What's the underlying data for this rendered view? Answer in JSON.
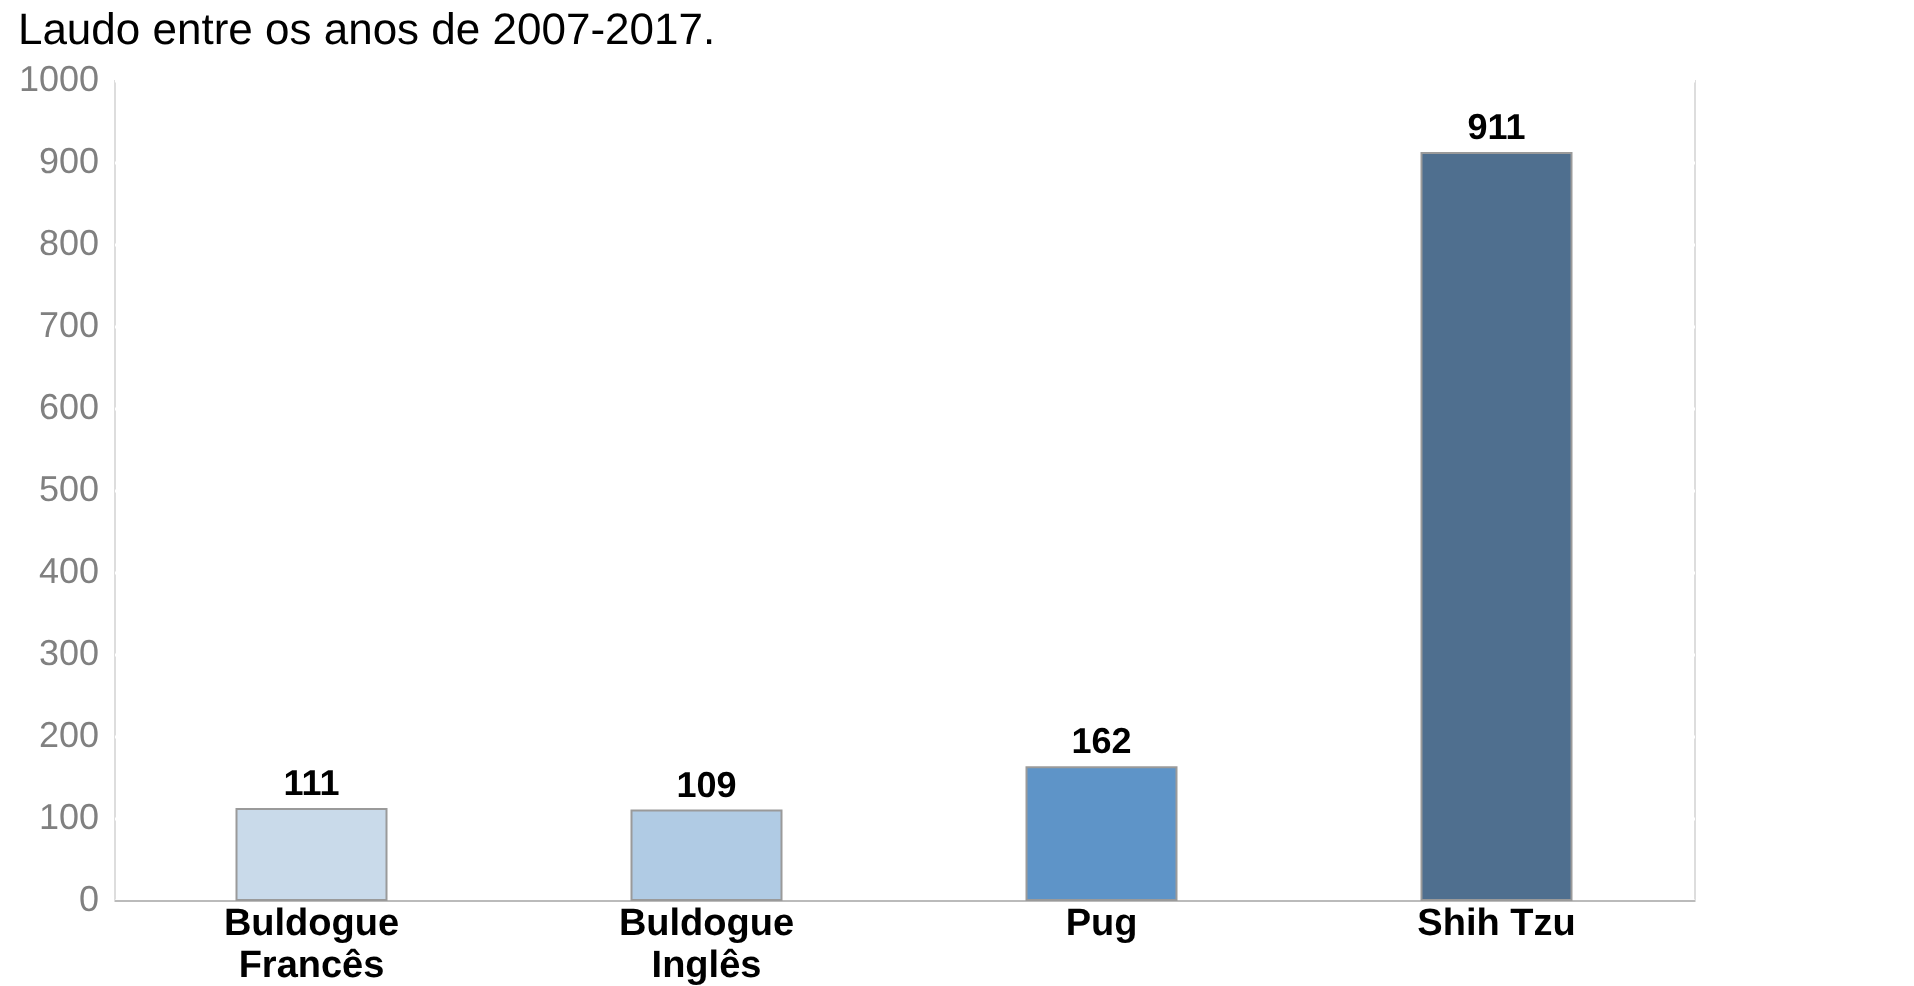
{
  "chart_data": {
    "type": "bar",
    "title": "Laudo entre os anos de 2007-2017.",
    "categories": [
      "Buldogue Francês",
      "Buldogue Inglês",
      "Pug",
      "Shih Tzu"
    ],
    "values": [
      111,
      109,
      162,
      911
    ],
    "colors": [
      "#c9daea",
      "#b0cbe4",
      "#5e94c8",
      "#4f6f8f"
    ],
    "ylim": [
      0,
      1000
    ],
    "yticks": [
      0,
      100,
      200,
      300,
      400,
      500,
      600,
      700,
      800,
      900,
      1000
    ],
    "grid": "y",
    "data_labels": true
  }
}
